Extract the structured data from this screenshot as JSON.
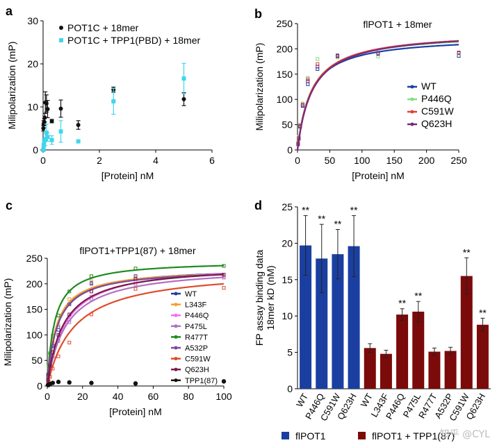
{
  "watermark": "知乎 @CYL",
  "colors": {
    "blue": "#1b3fa0",
    "darkred": "#7b0a0a",
    "cyan": "#3fd6ec",
    "black": "#111111"
  },
  "chart_data": [
    {
      "panel": "a",
      "type": "scatter",
      "xlabel": "[Protein] nM",
      "ylabel": "Milipolarization (mP)",
      "xlim": [
        0,
        6
      ],
      "ylim": [
        0,
        30
      ],
      "xticks": [
        0,
        2,
        4,
        6
      ],
      "yticks": [
        0,
        10,
        20,
        30
      ],
      "legend": "top-left",
      "series": [
        {
          "name": "POT1C + 18mer",
          "color": "#111111",
          "points": [
            [
              0.01,
              5
            ],
            [
              0.02,
              6
            ],
            [
              0.04,
              6.5
            ],
            [
              0.06,
              7.5
            ],
            [
              0.08,
              11
            ],
            [
              0.12,
              10.8
            ],
            [
              0.16,
              9.5
            ],
            [
              0.31,
              6.7
            ],
            [
              0.63,
              9.6
            ],
            [
              1.25,
              5.8
            ],
            [
              2.5,
              14
            ],
            [
              5,
              11.8
            ]
          ],
          "err": [
            0.6,
            0.8,
            0.8,
            1,
            2.5,
            2,
            2,
            0.4,
            2,
            1,
            0.6,
            1.5
          ]
        },
        {
          "name": "POT1C + TPP1(PBD) + 18mer",
          "color": "#3fd6ec",
          "points": [
            [
              0.01,
              0
            ],
            [
              0.02,
              1
            ],
            [
              0.04,
              2
            ],
            [
              0.08,
              2.5
            ],
            [
              0.12,
              4
            ],
            [
              0.16,
              3
            ],
            [
              0.31,
              2.3
            ],
            [
              0.63,
              4.3
            ],
            [
              1.25,
              2
            ],
            [
              2.5,
              11.3
            ],
            [
              5,
              16.6
            ]
          ],
          "err": [
            0.3,
            0.5,
            0.7,
            1.5,
            2,
            1,
            1,
            2.5,
            0,
            3,
            3.5
          ]
        }
      ]
    },
    {
      "panel": "b",
      "type": "line",
      "title": "flPOT1 + 18mer",
      "xlabel": "[Protein] nM",
      "ylabel": "Milipolarization (mP)",
      "xlim": [
        0,
        250
      ],
      "ylim": [
        0,
        250
      ],
      "xticks": [
        0,
        50,
        100,
        150,
        200,
        250
      ],
      "yticks": [
        0,
        50,
        100,
        150,
        200,
        250
      ],
      "legend": "bottom-right",
      "x": [
        1,
        2,
        4,
        8,
        16,
        31,
        62,
        125,
        250
      ],
      "series": [
        {
          "name": "WT",
          "color": "#1b3fa0",
          "Bmax": 225,
          "Kd": 20,
          "points": [
            12,
            22,
            47,
            87,
            130,
            160,
            187,
            192,
            186
          ]
        },
        {
          "name": "P446Q",
          "color": "#7fe07f",
          "Bmax": 232,
          "Kd": 21,
          "points": [
            15,
            26,
            50,
            92,
            143,
            180,
            183,
            185,
            191
          ]
        },
        {
          "name": "C591W",
          "color": "#e04040",
          "Bmax": 235,
          "Kd": 22,
          "points": [
            13,
            24,
            48,
            90,
            140,
            170,
            185,
            190,
            193
          ]
        },
        {
          "name": "Q623H",
          "color": "#7a2a7a",
          "Bmax": 235,
          "Kd": 23,
          "points": [
            11,
            22,
            46,
            88,
            136,
            165,
            186,
            190,
            192
          ]
        }
      ]
    },
    {
      "panel": "c",
      "type": "line",
      "title": "flPOT1+TPP1(87) + 18mer",
      "xlabel": "[Protein] nM",
      "ylabel": "Milipolarization (mP)",
      "xlim": [
        0,
        100
      ],
      "ylim": [
        0,
        250
      ],
      "xticks": [
        0,
        20,
        40,
        60,
        80,
        100
      ],
      "yticks": [
        0,
        50,
        100,
        150,
        200,
        250
      ],
      "legend": "right",
      "x": [
        0.4,
        0.8,
        1.6,
        3.1,
        6.3,
        12.5,
        25,
        50,
        100
      ],
      "series": [
        {
          "name": "WT",
          "color": "#1b3fa0",
          "Bmax": 232,
          "Kd": 5.5,
          "points": [
            18,
            31,
            52,
            80,
            110,
            160,
            202,
            215,
            215
          ]
        },
        {
          "name": "L343F",
          "color": "#f0a030",
          "Bmax": 230,
          "Kd": 5.0,
          "points": [
            20,
            33,
            56,
            85,
            120,
            170,
            205,
            212,
            215
          ]
        },
        {
          "name": "P446Q",
          "color": "#ef6fef",
          "Bmax": 242,
          "Kd": 10,
          "points": [
            10,
            20,
            36,
            60,
            92,
            130,
            175,
            205,
            215
          ]
        },
        {
          "name": "P475L",
          "color": "#b070c0",
          "Bmax": 235,
          "Kd": 10.5,
          "points": [
            9,
            19,
            34,
            58,
            88,
            125,
            170,
            200,
            212
          ]
        },
        {
          "name": "R477T",
          "color": "#1e8a1e",
          "Bmax": 245,
          "Kd": 4.0,
          "points": [
            22,
            38,
            64,
            98,
            138,
            185,
            215,
            230,
            235
          ]
        },
        {
          "name": "A532P",
          "color": "#7a4a9a",
          "Bmax": 230,
          "Kd": 5.5,
          "points": [
            17,
            30,
            50,
            78,
            115,
            160,
            200,
            215,
            218
          ]
        },
        {
          "name": "C591W",
          "color": "#e04a2a",
          "Bmax": 230,
          "Kd": 15,
          "points": [
            4,
            9,
            18,
            34,
            58,
            85,
            140,
            190,
            192
          ]
        },
        {
          "name": "Q623H",
          "color": "#7a1a4a",
          "Bmax": 238,
          "Kd": 9,
          "points": [
            12,
            23,
            40,
            66,
            100,
            140,
            185,
            210,
            218
          ]
        },
        {
          "name": "TPP1(87)",
          "color": "#111111",
          "Bmax": 0,
          "Kd": 1,
          "points": [
            2,
            2,
            4,
            6,
            8,
            7,
            6,
            5,
            9
          ]
        }
      ]
    },
    {
      "panel": "d",
      "type": "bar",
      "ylabel": "FP assay binding data 18mer kD (nM)",
      "ylim": [
        0,
        25
      ],
      "yticks": [
        0,
        5,
        10,
        15,
        20,
        25
      ],
      "categories": [
        "WT",
        "P446Q",
        "C591W",
        "Q623H",
        "WT",
        "L343F",
        "P446Q",
        "P475L",
        "R477T",
        "A532P",
        "C591W",
        "Q623H"
      ],
      "values": [
        19.7,
        17.9,
        18.5,
        19.6,
        5.6,
        4.8,
        10.2,
        10.6,
        5.1,
        5.2,
        15.5,
        8.8
      ],
      "errors": [
        4.1,
        4.7,
        3.4,
        4.2,
        0.6,
        0.5,
        0.8,
        1.4,
        0.5,
        0.5,
        2.5,
        0.9
      ],
      "significance": [
        "**",
        "**",
        "**",
        "**",
        "",
        "",
        "**",
        "**",
        "",
        "",
        "**",
        "**"
      ],
      "groups": [
        {
          "name": "flPOT1",
          "color": "#1b3fa0",
          "count": 4
        },
        {
          "name": "flPOT1 + TPP1(87)",
          "color": "#7b0a0a",
          "count": 8
        }
      ],
      "legend": "bottom"
    }
  ]
}
